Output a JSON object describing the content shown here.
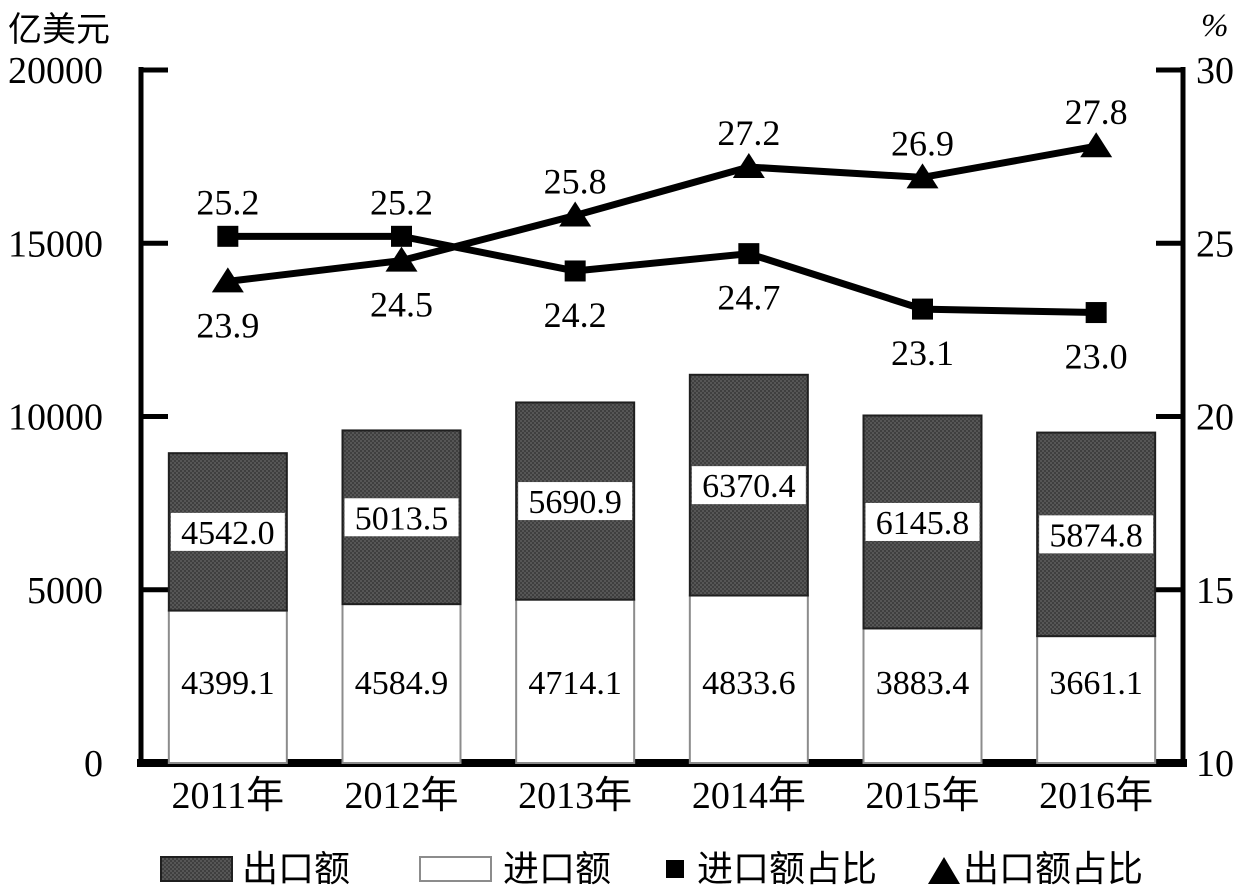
{
  "chart_data": {
    "type": "combo-stacked-bar-line",
    "categories": [
      "2011年",
      "2012年",
      "2013年",
      "2014年",
      "2015年",
      "2016年"
    ],
    "series": [
      {
        "name": "出口额",
        "type": "bar",
        "stack": "trade",
        "position": "top",
        "axis": "left",
        "values": [
          4542.0,
          5013.5,
          5690.9,
          6370.4,
          6145.8,
          5874.8
        ],
        "labels": [
          "4542.0",
          "5013.5",
          "5690.9",
          "6370.4",
          "6145.8",
          "5874.8"
        ],
        "boxed_labels": true,
        "color": "#4a4a4a"
      },
      {
        "name": "进口额",
        "type": "bar",
        "stack": "trade",
        "position": "bottom",
        "axis": "left",
        "values": [
          4399.1,
          4584.9,
          4714.1,
          4833.6,
          3883.4,
          3661.1
        ],
        "labels": [
          "4399.1",
          "4584.9",
          "4714.1",
          "4833.6",
          "3883.4",
          "3661.1"
        ],
        "boxed_labels": false,
        "color": "#ffffff"
      },
      {
        "name": "进口额占比",
        "type": "line",
        "marker": "square",
        "axis": "right",
        "values": [
          25.2,
          25.2,
          24.2,
          24.7,
          23.1,
          23.0
        ],
        "labels": [
          "25.2",
          "25.2",
          "24.2",
          "24.7",
          "23.1",
          "23.0"
        ],
        "label_pos": [
          "above",
          "above",
          "below",
          "below",
          "below",
          "below"
        ],
        "color": "#000000"
      },
      {
        "name": "出口额占比",
        "type": "line",
        "marker": "triangle",
        "axis": "right",
        "values": [
          23.9,
          24.5,
          25.8,
          27.2,
          26.9,
          27.8
        ],
        "labels": [
          "23.9",
          "24.5",
          "25.8",
          "27.2",
          "26.9",
          "27.8"
        ],
        "label_pos": [
          "below",
          "below",
          "above",
          "above",
          "above",
          "above"
        ],
        "color": "#000000"
      }
    ],
    "left_axis": {
      "label": "亿美元",
      "min": 0,
      "max": 20000,
      "ticks": [
        0,
        5000,
        10000,
        15000,
        20000
      ],
      "tick_labels": [
        "0",
        "5000",
        "10000",
        "15000",
        "20000"
      ]
    },
    "right_axis": {
      "label": "%",
      "min": 10,
      "max": 30,
      "ticks": [
        10,
        15,
        20,
        25,
        30
      ],
      "tick_labels": [
        "10",
        "15",
        "20",
        "25",
        "30"
      ]
    },
    "legend": [
      {
        "label": "出口额",
        "swatch": "bar-dark"
      },
      {
        "label": "进口额",
        "swatch": "bar-white"
      },
      {
        "label": "进口额占比",
        "swatch": "square"
      },
      {
        "label": "出口额占比",
        "swatch": "triangle"
      }
    ],
    "grid": false,
    "legend_position": "bottom"
  },
  "colors": {
    "bar_dark_a": "#3f3f3f",
    "bar_dark_b": "#565656",
    "bar_dark_border": "#1f1f1f",
    "bar_white": "#ffffff",
    "bar_white_border": "#8c8c8c",
    "line": "#000000",
    "axis": "#000000",
    "text": "#000000",
    "background": "#ffffff"
  }
}
